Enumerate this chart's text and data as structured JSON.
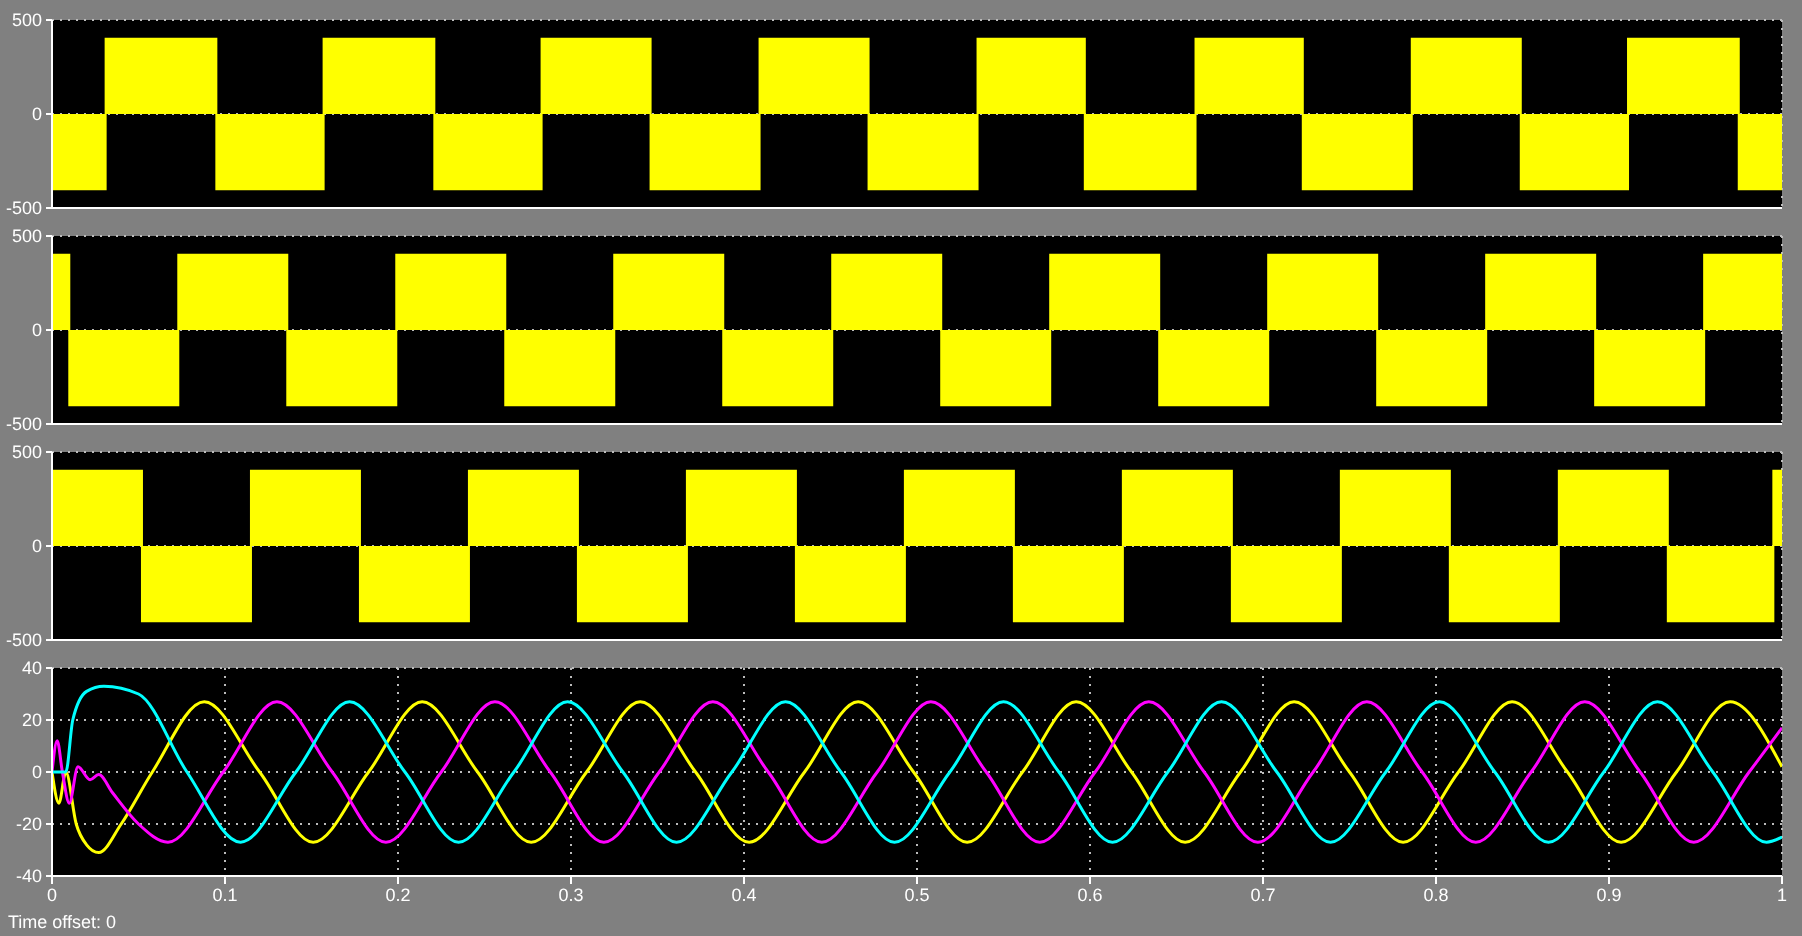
{
  "chart_data": [
    {
      "type": "step",
      "xlim": [
        0,
        1
      ],
      "xticks": [
        0,
        0.1,
        0.2,
        0.3,
        0.4,
        0.5,
        0.6,
        0.7,
        0.8,
        0.9,
        1
      ],
      "ylim": [
        -500,
        500
      ],
      "yticks": [
        -500,
        0,
        500
      ],
      "grid": true,
      "tick_labels": "y",
      "series": [
        {
          "color": "#ffff00",
          "x": [
            0,
            0.031,
            0.095,
            0.157,
            0.221,
            0.283,
            0.346,
            0.409,
            0.472,
            0.535,
            0.597,
            0.661,
            0.723,
            0.786,
            0.849,
            0.911,
            0.975,
            1
          ],
          "values": [
            -400,
            400,
            -400,
            400,
            -400,
            400,
            -400,
            400,
            -400,
            400,
            -400,
            400,
            -400,
            400,
            -400,
            400,
            -400,
            -400
          ]
        }
      ]
    },
    {
      "type": "step",
      "xlim": [
        0,
        1
      ],
      "xticks": [
        0,
        0.1,
        0.2,
        0.3,
        0.4,
        0.5,
        0.6,
        0.7,
        0.8,
        0.9,
        1
      ],
      "ylim": [
        -500,
        500
      ],
      "yticks": [
        -500,
        0,
        500
      ],
      "grid": true,
      "tick_labels": "y",
      "series": [
        {
          "color": "#ffff00",
          "x": [
            0,
            0.01,
            0.073,
            0.136,
            0.199,
            0.262,
            0.325,
            0.388,
            0.451,
            0.514,
            0.577,
            0.64,
            0.703,
            0.766,
            0.829,
            0.892,
            0.955,
            1
          ],
          "values": [
            400,
            -400,
            400,
            -400,
            400,
            -400,
            400,
            -400,
            400,
            -400,
            400,
            -400,
            400,
            -400,
            400,
            -400,
            400,
            400
          ]
        }
      ]
    },
    {
      "type": "step",
      "xlim": [
        0,
        1
      ],
      "xticks": [
        0,
        0.1,
        0.2,
        0.3,
        0.4,
        0.5,
        0.6,
        0.7,
        0.8,
        0.9,
        1
      ],
      "ylim": [
        -500,
        500
      ],
      "yticks": [
        -500,
        0,
        500
      ],
      "grid": true,
      "tick_labels": "y",
      "series": [
        {
          "color": "#ffff00",
          "x": [
            0,
            0.052,
            0.115,
            0.178,
            0.241,
            0.304,
            0.367,
            0.43,
            0.493,
            0.556,
            0.619,
            0.682,
            0.745,
            0.808,
            0.871,
            0.934,
            0.995,
            1
          ],
          "values": [
            400,
            -400,
            400,
            -400,
            400,
            -400,
            400,
            -400,
            400,
            -400,
            400,
            -400,
            400,
            -400,
            400,
            -400,
            400,
            400
          ]
        }
      ]
    },
    {
      "type": "line",
      "xlim": [
        0,
        1
      ],
      "xticks": [
        0,
        0.1,
        0.2,
        0.3,
        0.4,
        0.5,
        0.6,
        0.7,
        0.8,
        0.9,
        1
      ],
      "ylim": [
        -40,
        40
      ],
      "yticks": [
        -40,
        -20,
        0,
        20,
        40
      ],
      "grid": true,
      "annotations": [
        "Time offset:  0"
      ],
      "series": [
        {
          "color": "#ffff00",
          "x": [
            0,
            0.004,
            0.008,
            0.014,
            0.02,
            0.027,
            0.04,
            0.058,
            0.088,
            0.12,
            0.151,
            0.183,
            0.214,
            0.246,
            0.277,
            0.309,
            0.34,
            0.372,
            0.403,
            0.435,
            0.466,
            0.498,
            0.529,
            0.561,
            0.592,
            0.624,
            0.655,
            0.687,
            0.718,
            0.75,
            0.781,
            0.813,
            0.844,
            0.876,
            0.907,
            0.939,
            0.97,
            1
          ],
          "values": [
            0,
            -12,
            0,
            -20,
            -28,
            -31,
            -20,
            0,
            27,
            0,
            -27,
            0,
            27,
            0,
            -27,
            0,
            27,
            0,
            -27,
            0,
            27,
            0,
            -27,
            0,
            27,
            0,
            -27,
            0,
            27,
            0,
            -27,
            0,
            27,
            0,
            -27,
            0,
            27,
            2
          ]
        },
        {
          "color": "#ff00ff",
          "x": [
            0,
            0.003,
            0.006,
            0.01,
            0.015,
            0.022,
            0.027,
            0.035,
            0.05,
            0.067,
            0.099,
            0.13,
            0.162,
            0.193,
            0.225,
            0.256,
            0.288,
            0.319,
            0.351,
            0.382,
            0.414,
            0.445,
            0.477,
            0.508,
            0.54,
            0.571,
            0.603,
            0.634,
            0.666,
            0.697,
            0.729,
            0.76,
            0.792,
            0.823,
            0.855,
            0.886,
            0.918,
            0.949,
            0.981,
            1
          ],
          "values": [
            0,
            12,
            0,
            -12,
            2,
            -3,
            -1,
            -8,
            -20,
            -27,
            0,
            27,
            0,
            -27,
            0,
            27,
            0,
            -27,
            0,
            27,
            0,
            -27,
            0,
            27,
            0,
            -27,
            0,
            27,
            0,
            -27,
            0,
            27,
            0,
            -27,
            0,
            27,
            0,
            -27,
            0,
            17
          ]
        },
        {
          "color": "#00ffff",
          "x": [
            0,
            0.008,
            0.012,
            0.02,
            0.03,
            0.05,
            0.078,
            0.109,
            0.141,
            0.172,
            0.204,
            0.235,
            0.267,
            0.298,
            0.33,
            0.361,
            0.393,
            0.424,
            0.456,
            0.487,
            0.519,
            0.55,
            0.582,
            0.613,
            0.645,
            0.676,
            0.708,
            0.739,
            0.771,
            0.802,
            0.834,
            0.865,
            0.897,
            0.928,
            0.96,
            0.991,
            1
          ],
          "values": [
            0,
            0,
            20,
            31,
            33,
            30,
            0,
            -27,
            0,
            27,
            0,
            -27,
            0,
            27,
            0,
            -27,
            0,
            27,
            0,
            -27,
            0,
            27,
            0,
            -27,
            0,
            27,
            0,
            -27,
            0,
            27,
            0,
            -27,
            0,
            27,
            0,
            -27,
            -25
          ]
        }
      ]
    }
  ]
}
